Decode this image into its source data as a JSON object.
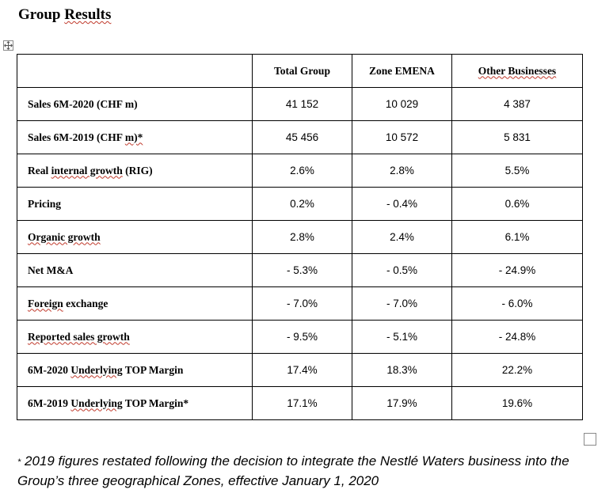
{
  "title": "Group Results",
  "table": {
    "headers": [
      "",
      "Total Group",
      "Zone EMENA",
      "Other Businesses"
    ],
    "rows": [
      {
        "label": "Sales 6M-2020 (CHF m)",
        "values": [
          "41 152",
          "10 029",
          "4 387"
        ]
      },
      {
        "label": "Sales 6M-2019 (CHF m)*",
        "values": [
          "45 456",
          "10 572",
          "5 831"
        ]
      },
      {
        "label": "Real internal growth (RIG)",
        "values": [
          "2.6%",
          "2.8%",
          "5.5%"
        ]
      },
      {
        "label": "Pricing",
        "values": [
          "0.2%",
          "- 0.4%",
          "0.6%"
        ]
      },
      {
        "label": "Organic growth",
        "values": [
          "2.8%",
          "2.4%",
          "6.1%"
        ]
      },
      {
        "label": "Net M&A",
        "values": [
          "- 5.3%",
          "- 0.5%",
          "- 24.9%"
        ]
      },
      {
        "label": "Foreign exchange",
        "values": [
          "- 7.0%",
          "- 7.0%",
          "- 6.0%"
        ]
      },
      {
        "label": "Reported sales growth",
        "values": [
          "- 9.5%",
          "- 5.1%",
          "- 24.8%"
        ]
      },
      {
        "label": "6M-2020 Underlying TOP Margin",
        "values": [
          "17.4%",
          "18.3%",
          "22.2%"
        ]
      },
      {
        "label": "6M-2019 Underlying TOP Margin*",
        "values": [
          "17.1%",
          "17.9%",
          "19.6%"
        ]
      }
    ]
  },
  "footnote": {
    "marker": "*",
    "text": " 2019 figures restated following the decision to integrate the Nestlé Waters business into the Group’s three geographical Zones, effective January 1, 2020"
  },
  "icons": {
    "table_move_handle": "move-arrows-icon",
    "table_resize_handle": "resize-square-icon"
  }
}
